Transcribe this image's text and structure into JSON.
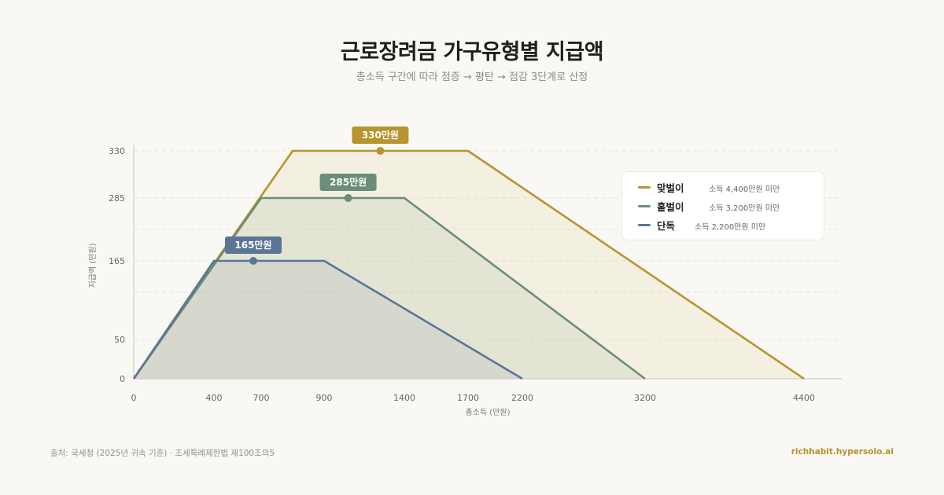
{
  "header": {
    "title": "근로장려금 가구유형별 지급액",
    "subtitle": "총소득 구간에 따라 점증 → 평탄 → 점감 3단계로 산정"
  },
  "footer": {
    "source": "출처: 국세청 (2025년 귀속 기준) · 조세특례제한법 제100조의5",
    "site": "richhabit.hypersolo.ai"
  },
  "legend": [
    {
      "name": "맞벌이",
      "condition": "소득 4,400만원 미만",
      "color": "#b8942f"
    },
    {
      "name": "홑벌이",
      "condition": "소득 3,200만원 미만",
      "color": "#6c8d78"
    },
    {
      "name": "단독",
      "condition": "소득 2,200만원 미만",
      "color": "#5a7595"
    }
  ],
  "chart_data": {
    "type": "area",
    "xlabel": "총소득 (만원)",
    "ylabel": "지급액 (만원)",
    "xticks": [
      0,
      400,
      700,
      900,
      1400,
      1700,
      2200,
      3200,
      4400
    ],
    "yticks": [
      0,
      50,
      165,
      285,
      330
    ],
    "series": [
      {
        "name": "맞벌이",
        "color": "#b8942f",
        "points": [
          [
            0,
            0
          ],
          [
            800,
            330
          ],
          [
            1700,
            330
          ],
          [
            4400,
            0
          ]
        ],
        "peak_label": "330만원",
        "peak_x": 1250
      },
      {
        "name": "홑벌이",
        "color": "#6c8d78",
        "points": [
          [
            0,
            0
          ],
          [
            700,
            285
          ],
          [
            1400,
            285
          ],
          [
            3200,
            0
          ]
        ],
        "peak_label": "285만원",
        "peak_x": 1050
      },
      {
        "name": "단독",
        "color": "#5a7595",
        "points": [
          [
            0,
            0
          ],
          [
            400,
            165
          ],
          [
            900,
            165
          ],
          [
            2200,
            0
          ]
        ],
        "peak_label": "165만원",
        "peak_x": 650
      }
    ]
  }
}
